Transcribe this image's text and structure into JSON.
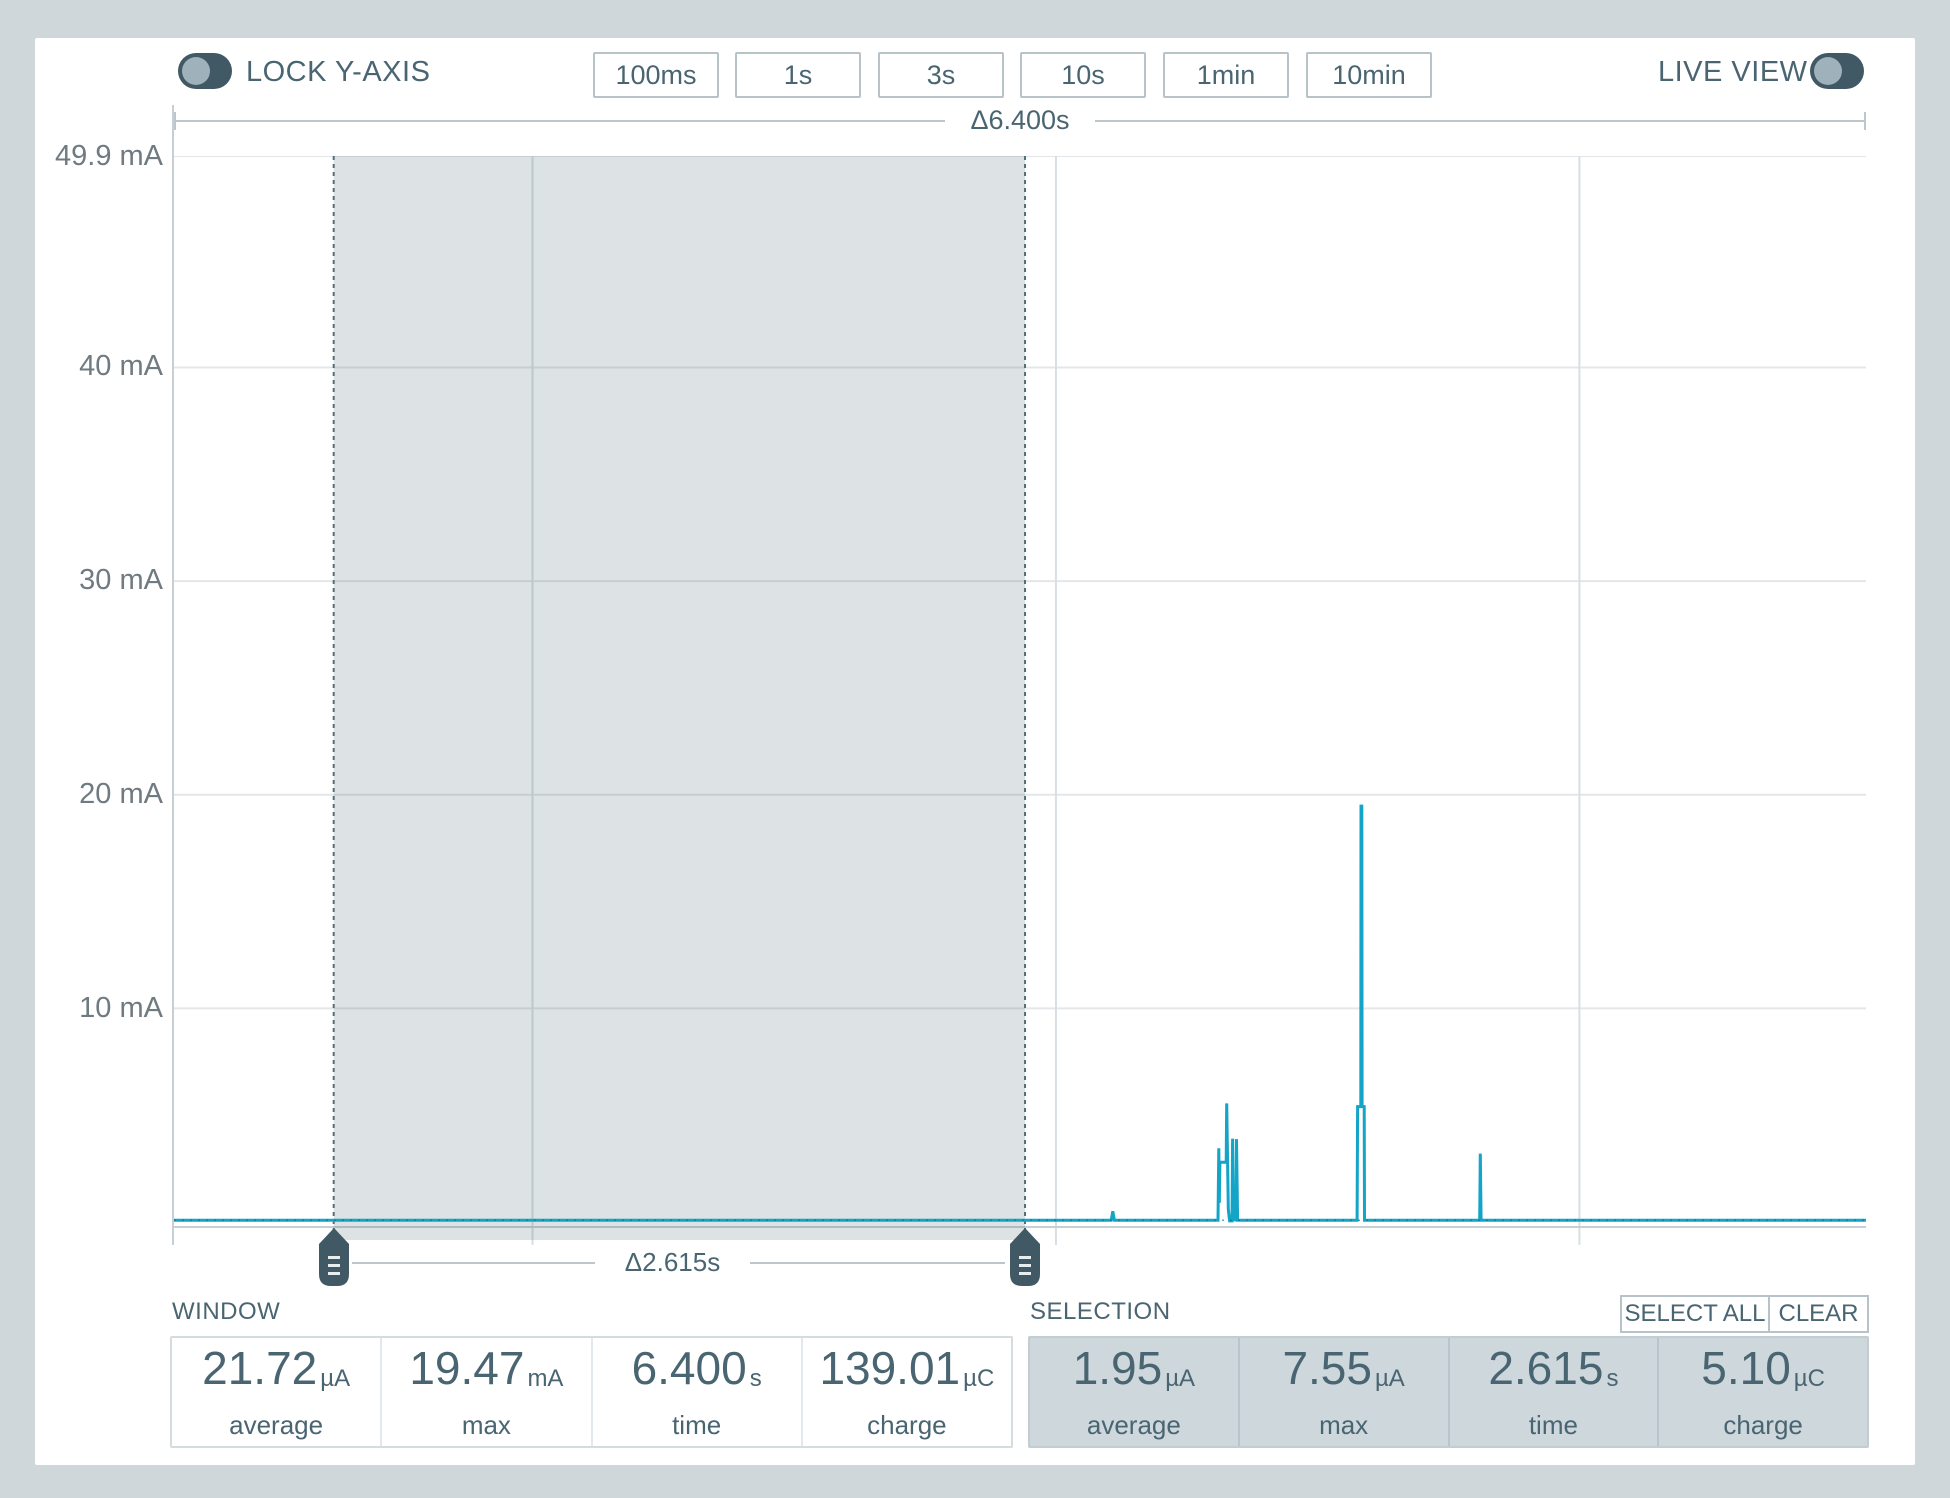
{
  "header": {
    "lock_y_axis_label": "LOCK Y-AXIS",
    "live_view_label": "LIVE VIEW",
    "zoom_buttons": [
      "100ms",
      "1s",
      "3s",
      "10s",
      "1min",
      "10min"
    ]
  },
  "chart_data": {
    "type": "line",
    "ylabel_unit": "mA",
    "ylim": [
      0,
      49.9
    ],
    "xlim_seconds": [
      0,
      6.4
    ],
    "grid": "on",
    "y_ticks": [
      {
        "label": "49.9 mA",
        "value": 49.9
      },
      {
        "label": "40 mA",
        "value": 40
      },
      {
        "label": "30 mA",
        "value": 30
      },
      {
        "label": "20 mA",
        "value": 20
      },
      {
        "label": "10 mA",
        "value": 10
      }
    ],
    "vgrid_seconds": [
      1.356,
      3.336,
      5.316
    ],
    "window_delta_label": "Δ6.400s",
    "selection_delta_label": "Δ2.615s",
    "selection_range_seconds": [
      0.604,
      3.219
    ],
    "series": [
      {
        "name": "current",
        "color": "#13a4c8",
        "points": [
          [
            0,
            0.08
          ],
          [
            3.545,
            0.08
          ],
          [
            3.551,
            0.5
          ],
          [
            3.557,
            0.08
          ],
          [
            3.949,
            0.08
          ],
          [
            3.952,
            3.45
          ],
          [
            3.954,
            0.9
          ],
          [
            3.956,
            2.8
          ],
          [
            3.98,
            2.8
          ],
          [
            3.982,
            5.55
          ],
          [
            3.988,
            0.6
          ],
          [
            3.993,
            0.05
          ],
          [
            4.002,
            0.05
          ],
          [
            4.004,
            3.9
          ],
          [
            4.008,
            0.1
          ],
          [
            4.017,
            0.1
          ],
          [
            4.019,
            3.88
          ],
          [
            4.023,
            0.08
          ],
          [
            4.475,
            0.08
          ],
          [
            4.477,
            5.4
          ],
          [
            4.489,
            5.4
          ],
          [
            4.49,
            19.47
          ],
          [
            4.493,
            19.47
          ],
          [
            4.494,
            5.4
          ],
          [
            4.502,
            5.4
          ],
          [
            4.503,
            0.08
          ],
          [
            4.939,
            0.08
          ],
          [
            4.941,
            3.2
          ],
          [
            4.944,
            0.08
          ],
          [
            6.4,
            0.08
          ]
        ]
      }
    ]
  },
  "window_stats": {
    "label": "WINDOW",
    "stats": [
      {
        "value": "21.72",
        "unit": "µA",
        "label": "average"
      },
      {
        "value": "19.47",
        "unit": "mA",
        "label": "max"
      },
      {
        "value": "6.400",
        "unit": "s",
        "label": "time"
      },
      {
        "value": "139.01",
        "unit": "µC",
        "label": "charge"
      }
    ]
  },
  "selection_stats": {
    "label": "SELECTION",
    "select_all_label": "SELECT ALL",
    "clear_label": "CLEAR",
    "stats": [
      {
        "value": "1.95",
        "unit": "µA",
        "label": "average"
      },
      {
        "value": "7.55",
        "unit": "µA",
        "label": "max"
      },
      {
        "value": "2.615",
        "unit": "s",
        "label": "time"
      },
      {
        "value": "5.10",
        "unit": "µC",
        "label": "charge"
      }
    ]
  }
}
